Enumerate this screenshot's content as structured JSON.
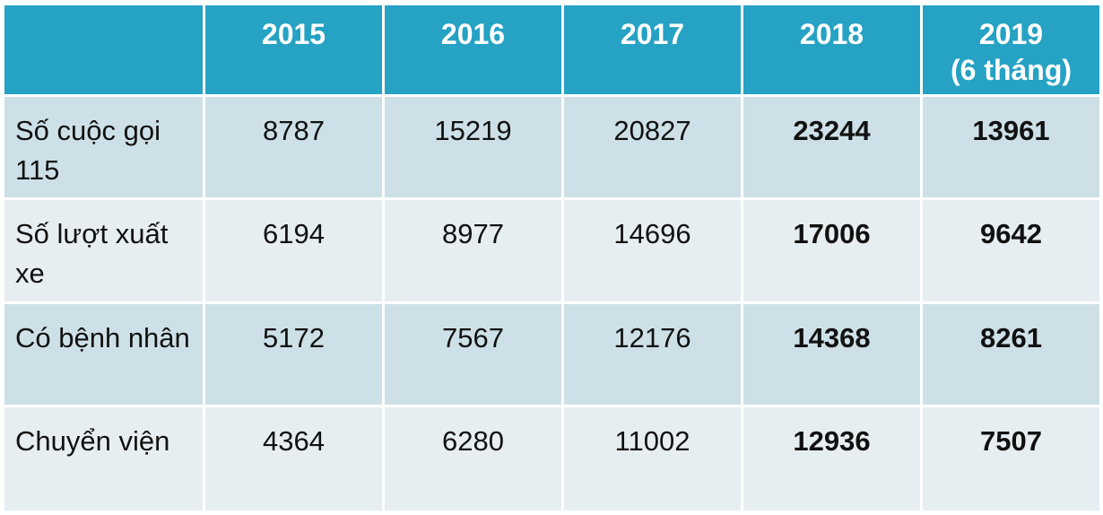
{
  "table": {
    "header": {
      "corner": "",
      "years": [
        "2015",
        "2016",
        "2017",
        "2018",
        "2019\n(6 tháng)"
      ]
    },
    "rows": [
      {
        "label": "Số cuộc gọi 115",
        "values": [
          "8787",
          "15219",
          "20827",
          "23244",
          "13961"
        ]
      },
      {
        "label": "Số lượt xuất xe",
        "values": [
          "6194",
          "8977",
          "14696",
          "17006",
          "9642"
        ]
      },
      {
        "label": "Có bệnh nhân",
        "values": [
          "5172",
          "7567",
          "12176",
          "14368",
          "8261"
        ]
      },
      {
        "label": "Chuyển viện",
        "values": [
          "4364",
          "6280",
          "11002",
          "12936",
          "7507"
        ]
      }
    ],
    "colors": {
      "header_bg": "#25a2c4",
      "row_odd_bg": "#cde0e7",
      "row_even_bg": "#e7eef1"
    }
  }
}
